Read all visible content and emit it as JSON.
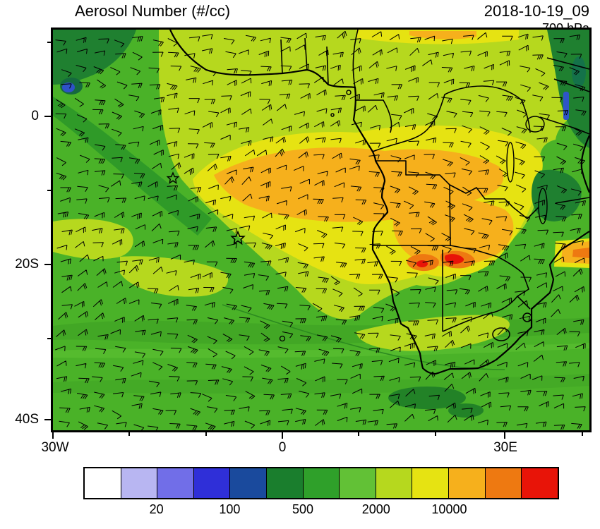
{
  "header": {
    "title": "Aerosol Number (#/cc)",
    "datetime": "2018-10-19_09",
    "level": "700 hPa"
  },
  "axes": {
    "y": [
      "0",
      "20S",
      "40S"
    ],
    "x": [
      "30W",
      "0",
      "30E"
    ]
  },
  "colorbar": {
    "labels": [
      "20",
      "100",
      "500",
      "2000",
      "10000"
    ],
    "colors": [
      "#ffffff",
      "#b8b6f2",
      "#716ee8",
      "#2f2fd8",
      "#1a4a9d",
      "#1a7e2d",
      "#2fa02a",
      "#62c136",
      "#b6d81e",
      "#e6e312",
      "#f6b01c",
      "#ee7911",
      "#e81408"
    ]
  },
  "chart_data": {
    "type": "heatmap",
    "title": "Aerosol Number (#/cc)",
    "timestamp": "2018-10-19_09",
    "level": "700 hPa",
    "variable": "aerosol number concentration",
    "units": "#/cc",
    "projection": "lat-lon map of southern Africa and tropical South Atlantic",
    "x_axis": {
      "label": "longitude",
      "tick_labels": [
        "30W",
        "0",
        "30E"
      ],
      "range": [
        "30W",
        "40E"
      ]
    },
    "y_axis": {
      "label": "latitude",
      "tick_labels": [
        "0",
        "20S",
        "40S"
      ],
      "range": [
        "12N",
        "42S"
      ]
    },
    "colorbar": {
      "tick_labels": [
        20,
        100,
        500,
        2000,
        10000
      ],
      "n_bins": 13,
      "colors": [
        "#ffffff",
        "#b8b6f2",
        "#716ee8",
        "#2f2fd8",
        "#1a4a9d",
        "#1a7e2d",
        "#2fa02a",
        "#62c136",
        "#b6d81e",
        "#e6e312",
        "#f6b01c",
        "#ee7911",
        "#e81408"
      ],
      "scale": "discrete logarithmic-style bins"
    },
    "overlay": "wind barbs at 700 hPa over entire domain",
    "features": [
      {
        "name": "biomass-burning plume 2000-10000 #/cc (orange)",
        "location": "tropical South Atlantic off Angola coast (~5S-18S) extending over Angola and Zambia"
      },
      {
        "name": "maxima >10000 #/cc (red)",
        "location": "~21S, 16-21E near Angola/Namibia/Botswana border region"
      },
      {
        "name": "clean air <500 #/cc (dark green/blue)",
        "location": "northwest corner of domain, northeast highlands, and along east coast"
      },
      {
        "name": "star marker",
        "location": "~8S 14W (Ascension Island area)"
      },
      {
        "name": "star marker",
        "location": "~16S 6W (St Helena area)"
      }
    ]
  }
}
